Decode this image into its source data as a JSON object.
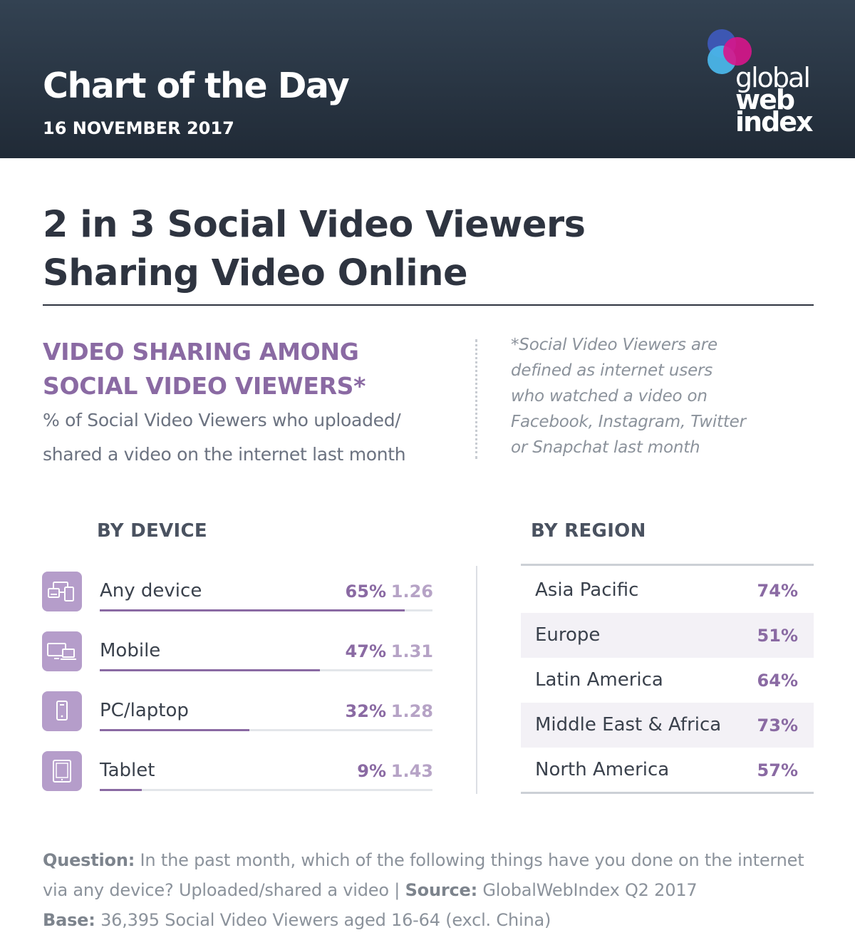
{
  "header": {
    "title": "Chart of the Day",
    "date": "16 NOVEMBER 2017",
    "logo": {
      "line1": "global",
      "line2": "web",
      "line3": "index",
      "colors": [
        "#3e58b8",
        "#d8158b",
        "#4ab4e8"
      ]
    }
  },
  "main_title": {
    "line1": "2 in 3 Social Video Viewers",
    "line2": "Sharing Video Online"
  },
  "section": {
    "title_line1": "VIDEO SHARING AMONG",
    "title_line2": "SOCIAL VIDEO VIEWERS*",
    "subtitle_line1": "% of Social Video Viewers who uploaded/",
    "subtitle_line2": "shared a video on the internet last month"
  },
  "footnote": {
    "line1": "*Social Video Viewers are",
    "line2": "defined as internet users",
    "line3": "who watched a video on",
    "line4": "Facebook, Instagram, Twitter",
    "line5": "or Snapchat last month"
  },
  "chart_data": [
    {
      "type": "bar",
      "title": "BY DEVICE",
      "categories": [
        "Any device",
        "Mobile",
        "PC/laptop",
        "Tablet"
      ],
      "values": [
        65,
        47,
        32,
        9
      ],
      "value_labels": [
        "65%",
        "47%",
        "32%",
        "9%"
      ],
      "index_values": [
        "1.26",
        "1.31",
        "1.28",
        "1.43"
      ],
      "icons": [
        "multi-device-icon",
        "desktop-laptop-icon",
        "smartphone-icon",
        "tablet-icon"
      ],
      "xlim": [
        0,
        71
      ],
      "colors": {
        "bar": "#8a6aa3",
        "track": "#e3e6ea",
        "icon_bg": "#b59dca"
      }
    },
    {
      "type": "table",
      "title": "BY REGION",
      "categories": [
        "Asia Pacific",
        "Europe",
        "Latin America",
        "Middle East & Africa",
        "North America"
      ],
      "values": [
        74,
        51,
        64,
        73,
        57
      ],
      "value_labels": [
        "74%",
        "51%",
        "64%",
        "73%",
        "57%"
      ]
    }
  ],
  "notes": {
    "question_label": "Question:",
    "question_text": " In the past month, which of the following things have you done on the internet via any device? Uploaded/shared a video",
    "separator": "  |  ",
    "source_label": "Source:",
    "source_text": " GlobalWebIndex Q2 2017",
    "base_label": "Base:",
    "base_text": " 36,395 Social Video Viewers aged 16-64 (excl. China)"
  }
}
